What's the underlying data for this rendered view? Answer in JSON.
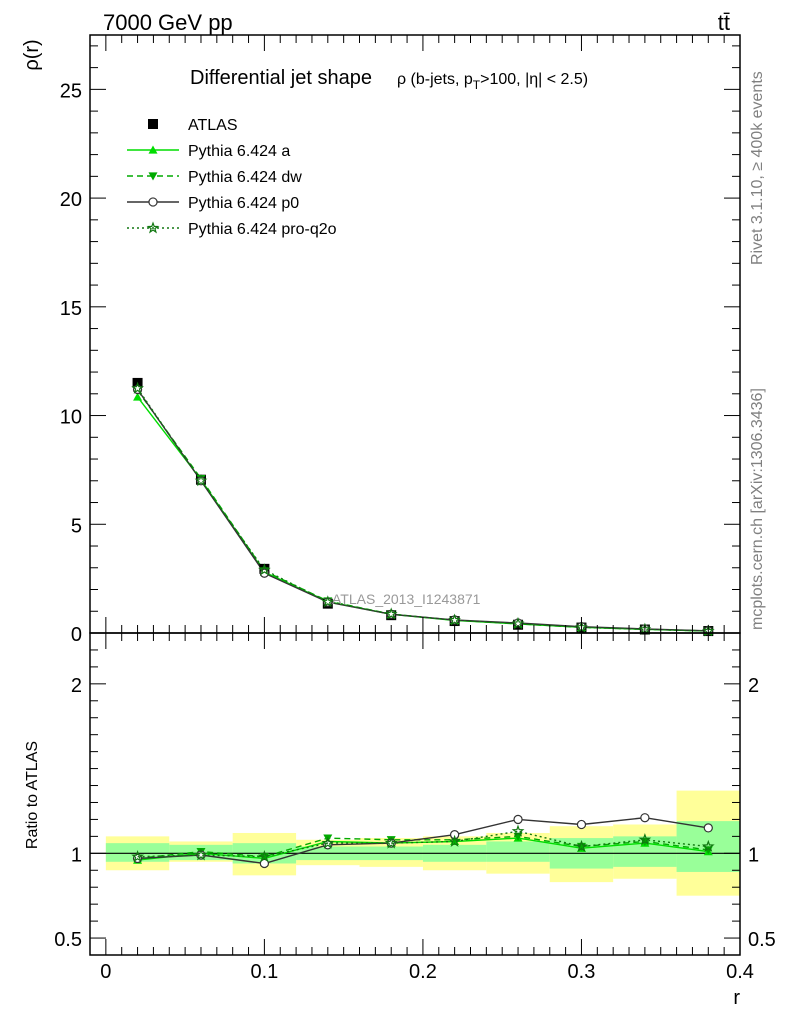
{
  "header": {
    "left": "7000 GeV pp",
    "right": "tt̄"
  },
  "side_labels": {
    "rivet": "Rivet 3.1.10, ≥ 400k events",
    "mcplots": "mcplots.cern.ch [arXiv:1306.3436]"
  },
  "watermark": "ATLAS_2013_I1243871",
  "chart_data": [
    {
      "type": "line",
      "panel": "main",
      "title": "Differential jet shape",
      "title_suffix": "ρ (b-jets, p_T>100, |η| < 2.5)",
      "ylabel": "ρ(r)",
      "xlabel": "",
      "xlim": [
        -0.01,
        0.4
      ],
      "ylim": [
        0,
        27.5
      ],
      "yticks": [
        0,
        5,
        10,
        15,
        20,
        25
      ],
      "legend_position": "top-left",
      "x": [
        0.02,
        0.06,
        0.1,
        0.14,
        0.18,
        0.22,
        0.26,
        0.3,
        0.34,
        0.38
      ],
      "series": [
        {
          "name": "ATLAS",
          "style": "data",
          "color": "#000000",
          "values": [
            11.5,
            7.05,
            2.95,
            1.35,
            0.82,
            0.55,
            0.38,
            0.25,
            0.16,
            0.09
          ]
        },
        {
          "name": "Pythia 6.424 a",
          "style": "solid",
          "marker": "triangle-up",
          "color": "#00dd00",
          "values": [
            10.85,
            7.05,
            2.8,
            1.45,
            0.86,
            0.58,
            0.42,
            0.26,
            0.17,
            0.09
          ]
        },
        {
          "name": "Pythia 6.424 dw",
          "style": "dashed",
          "marker": "triangle-down",
          "color": "#00aa00",
          "values": [
            11.15,
            7.1,
            2.85,
            1.47,
            0.87,
            0.59,
            0.42,
            0.26,
            0.17,
            0.09
          ]
        },
        {
          "name": "Pythia 6.424 p0",
          "style": "solid",
          "marker": "circle-open",
          "color": "#333333",
          "values": [
            11.2,
            7.0,
            2.75,
            1.42,
            0.86,
            0.6,
            0.46,
            0.29,
            0.19,
            0.1
          ]
        },
        {
          "name": "Pythia 6.424 pro-q2o",
          "style": "dotted",
          "marker": "star",
          "color": "#117711",
          "values": [
            11.25,
            7.0,
            2.9,
            1.43,
            0.87,
            0.59,
            0.43,
            0.26,
            0.17,
            0.09
          ]
        }
      ]
    },
    {
      "type": "line",
      "panel": "ratio",
      "ylabel": "Ratio to ATLAS",
      "xlabel": "r",
      "xlim": [
        -0.01,
        0.4
      ],
      "ylim": [
        0.4,
        2.3
      ],
      "yticks": [
        0.5,
        1,
        2
      ],
      "ytick_labels": [
        "0.5",
        "1",
        "2"
      ],
      "xticks": [
        0,
        0.1,
        0.2,
        0.3,
        0.4
      ],
      "xtick_labels": [
        "0",
        "0.1",
        "0.2",
        "0.3",
        "0.4"
      ],
      "bins": [
        [
          0.0,
          0.04
        ],
        [
          0.04,
          0.08
        ],
        [
          0.08,
          0.12
        ],
        [
          0.12,
          0.16
        ],
        [
          0.16,
          0.2
        ],
        [
          0.2,
          0.24
        ],
        [
          0.24,
          0.28
        ],
        [
          0.28,
          0.32
        ],
        [
          0.32,
          0.36
        ],
        [
          0.36,
          0.4
        ]
      ],
      "bands": {
        "stat": {
          "color": "#99ff99",
          "lo": [
            0.95,
            0.96,
            0.94,
            0.96,
            0.96,
            0.95,
            0.95,
            0.91,
            0.92,
            0.89
          ],
          "hi": [
            1.06,
            1.05,
            1.06,
            1.04,
            1.04,
            1.05,
            1.07,
            1.09,
            1.1,
            1.19
          ]
        },
        "total": {
          "color": "#ffff99",
          "lo": [
            0.9,
            0.95,
            0.87,
            0.93,
            0.92,
            0.9,
            0.88,
            0.83,
            0.85,
            0.75
          ],
          "hi": [
            1.1,
            1.07,
            1.12,
            1.08,
            1.09,
            1.1,
            1.12,
            1.16,
            1.17,
            1.37
          ]
        }
      },
      "x": [
        0.02,
        0.06,
        0.1,
        0.14,
        0.18,
        0.22,
        0.26,
        0.3,
        0.34,
        0.38
      ],
      "series": [
        {
          "name": "Pythia 6.424 a",
          "style": "solid",
          "marker": "triangle-up",
          "color": "#00dd00",
          "values": [
            0.96,
            1.0,
            0.97,
            1.07,
            1.06,
            1.07,
            1.09,
            1.03,
            1.06,
            1.01
          ]
        },
        {
          "name": "Pythia 6.424 dw",
          "style": "dashed",
          "marker": "triangle-down",
          "color": "#00aa00",
          "values": [
            0.97,
            1.01,
            0.98,
            1.09,
            1.08,
            1.08,
            1.1,
            1.04,
            1.07,
            1.02
          ]
        },
        {
          "name": "Pythia 6.424 p0",
          "style": "solid",
          "marker": "circle-open",
          "color": "#333333",
          "values": [
            0.97,
            0.99,
            0.94,
            1.05,
            1.06,
            1.11,
            1.2,
            1.17,
            1.21,
            1.15
          ]
        },
        {
          "name": "Pythia 6.424 pro-q2o",
          "style": "dotted",
          "marker": "star",
          "color": "#117711",
          "values": [
            0.98,
            0.99,
            0.98,
            1.06,
            1.06,
            1.07,
            1.13,
            1.04,
            1.08,
            1.04
          ]
        }
      ]
    }
  ]
}
